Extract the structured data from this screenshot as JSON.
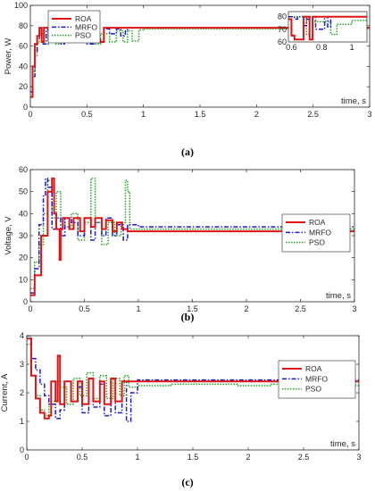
{
  "colors": {
    "ROA": "#e01414",
    "MRFO": "#1a1ad0",
    "PSO": "#22a522"
  },
  "panels": [
    {
      "label": "(a)"
    },
    {
      "label": "(b)"
    },
    {
      "label": "(c)"
    }
  ],
  "chart_data": [
    {
      "type": "line",
      "panel": "(a)",
      "xlabel": "time, s",
      "ylabel": "Power, W",
      "xlim": [
        0,
        3
      ],
      "ylim": [
        0,
        100
      ],
      "xticks": [
        0,
        0.5,
        1,
        1.5,
        2,
        2.5,
        3
      ],
      "yticks": [
        0,
        20,
        40,
        60,
        80,
        100
      ],
      "legend": [
        "ROA",
        "MRFO",
        "PSO"
      ],
      "legend_position": "top-left",
      "series": [
        {
          "name": "ROA",
          "style": "solid",
          "x": [
            0,
            0.02,
            0.04,
            0.06,
            0.08,
            0.1,
            0.12,
            0.16,
            0.2,
            0.24,
            0.28,
            0.32,
            0.36,
            0.4,
            0.44,
            0.5,
            0.56,
            0.6,
            0.62,
            0.65,
            0.72,
            0.8,
            0.86,
            0.9,
            1.0,
            3.0
          ],
          "values": [
            10,
            40,
            62,
            70,
            78,
            64,
            78,
            66,
            78,
            64,
            78,
            64,
            78,
            66,
            78,
            64,
            78,
            66,
            64,
            78,
            78,
            78,
            78,
            78,
            78,
            78
          ]
        },
        {
          "name": "MRFO",
          "style": "dashdot",
          "x": [
            0,
            0.02,
            0.04,
            0.06,
            0.08,
            0.1,
            0.14,
            0.18,
            0.22,
            0.26,
            0.3,
            0.36,
            0.42,
            0.5,
            0.56,
            0.6,
            0.65,
            0.7,
            0.76,
            0.8,
            0.84,
            0.86,
            0.9,
            1.0,
            3.0
          ],
          "values": [
            15,
            30,
            55,
            68,
            74,
            62,
            76,
            64,
            72,
            62,
            76,
            64,
            74,
            62,
            76,
            64,
            77,
            72,
            77,
            70,
            76,
            78,
            78,
            78,
            78
          ]
        },
        {
          "name": "PSO",
          "style": "dotted",
          "x": [
            0,
            0.02,
            0.04,
            0.06,
            0.08,
            0.12,
            0.16,
            0.22,
            0.3,
            0.38,
            0.46,
            0.54,
            0.62,
            0.7,
            0.76,
            0.82,
            0.86,
            0.9,
            0.96,
            1.0,
            1.5,
            2.0,
            2.5,
            3.0
          ],
          "values": [
            20,
            35,
            50,
            63,
            72,
            62,
            74,
            62,
            72,
            64,
            74,
            62,
            72,
            64,
            75,
            64,
            75,
            65,
            76,
            77,
            77,
            77,
            77,
            77
          ]
        }
      ],
      "inset": {
        "xlim": [
          0.58,
          1.1
        ],
        "ylim": [
          60,
          84
        ],
        "xticks": [
          0.6,
          0.8,
          1
        ],
        "yticks": [
          60,
          70,
          80
        ],
        "series": [
          {
            "name": "ROA",
            "style": "solid",
            "x": [
              0.58,
              0.6,
              0.62,
              0.66,
              0.68,
              0.72,
              0.74,
              0.8,
              1.1
            ],
            "values": [
              78,
              65,
              62,
              62,
              80,
              62,
              80,
              80,
              80
            ]
          },
          {
            "name": "MRFO",
            "style": "dashdot",
            "x": [
              0.58,
              0.6,
              0.62,
              0.64,
              0.68,
              0.7,
              0.72,
              0.76,
              0.8,
              0.82,
              0.84,
              0.86,
              0.9,
              1.1
            ],
            "values": [
              80,
              80,
              78,
              80,
              73,
              78,
              80,
              70,
              70,
              80,
              72,
              80,
              80,
              80
            ]
          },
          {
            "name": "PSO",
            "style": "dotted",
            "x": [
              0.58,
              0.62,
              0.66,
              0.7,
              0.72,
              0.76,
              0.8,
              0.86,
              0.9,
              0.96,
              1.0,
              1.1
            ],
            "values": [
              80,
              80,
              80,
              66,
              76,
              76,
              76,
              66,
              74,
              74,
              77,
              77
            ]
          }
        ]
      }
    },
    {
      "type": "line",
      "panel": "(b)",
      "xlabel": "time, s",
      "ylabel": "Voltage, V",
      "xlim": [
        0,
        3
      ],
      "ylim": [
        0,
        60
      ],
      "xticks": [
        0,
        0.5,
        1,
        1.5,
        2,
        2.5,
        3
      ],
      "yticks": [
        0,
        10,
        20,
        30,
        40,
        50,
        60
      ],
      "legend": [
        "ROA",
        "MRFO",
        "PSO"
      ],
      "legend_position": "top-right",
      "series": [
        {
          "name": "ROA",
          "style": "solid",
          "x": [
            0,
            0.04,
            0.1,
            0.16,
            0.2,
            0.22,
            0.24,
            0.27,
            0.28,
            0.3,
            0.36,
            0.4,
            0.46,
            0.5,
            0.56,
            0.6,
            0.66,
            0.7,
            0.76,
            0.8,
            0.85,
            0.9,
            3.0
          ],
          "values": [
            3,
            12,
            30,
            50,
            56,
            40,
            33,
            19,
            33,
            38,
            33,
            38,
            32,
            38,
            34,
            38,
            33,
            37,
            32,
            36,
            33,
            32,
            32
          ]
        },
        {
          "name": "MRFO",
          "style": "dashdot",
          "x": [
            0,
            0.04,
            0.08,
            0.12,
            0.14,
            0.16,
            0.2,
            0.24,
            0.28,
            0.32,
            0.38,
            0.44,
            0.5,
            0.56,
            0.6,
            0.66,
            0.7,
            0.76,
            0.8,
            0.86,
            0.9,
            1.0,
            3.0
          ],
          "values": [
            4,
            15,
            35,
            48,
            56,
            52,
            33,
            38,
            30,
            38,
            36,
            30,
            38,
            28,
            36,
            30,
            38,
            30,
            35,
            28,
            35,
            34,
            34
          ]
        },
        {
          "name": "PSO",
          "style": "dotted",
          "x": [
            0,
            0.04,
            0.08,
            0.12,
            0.16,
            0.2,
            0.24,
            0.28,
            0.32,
            0.38,
            0.44,
            0.5,
            0.56,
            0.6,
            0.66,
            0.72,
            0.78,
            0.84,
            0.88,
            0.9,
            0.92,
            1.0,
            3.0
          ],
          "values": [
            6,
            18,
            26,
            40,
            55,
            38,
            50,
            38,
            34,
            40,
            28,
            36,
            56,
            36,
            26,
            36,
            30,
            36,
            55,
            50,
            33,
            33,
            33
          ]
        }
      ]
    },
    {
      "type": "line",
      "panel": "(c)",
      "xlabel": "time, s",
      "ylabel": "Current, A",
      "xlim": [
        0,
        3
      ],
      "ylim": [
        0,
        4
      ],
      "xticks": [
        0,
        0.5,
        1,
        1.5,
        2,
        2.5,
        3
      ],
      "yticks": [
        0,
        1,
        2,
        3,
        4
      ],
      "legend": [
        "ROA",
        "MRFO",
        "PSO"
      ],
      "legend_position": "top-right",
      "series": [
        {
          "name": "ROA",
          "style": "solid",
          "x": [
            0,
            0.04,
            0.08,
            0.12,
            0.16,
            0.2,
            0.22,
            0.26,
            0.28,
            0.3,
            0.34,
            0.4,
            0.46,
            0.5,
            0.56,
            0.6,
            0.66,
            0.7,
            0.76,
            0.8,
            0.86,
            0.9,
            3.0
          ],
          "values": [
            3.9,
            2.6,
            1.8,
            1.3,
            1.1,
            1.2,
            2.4,
            1.7,
            3.3,
            1.6,
            2.4,
            1.7,
            2.4,
            1.6,
            2.5,
            1.7,
            2.4,
            1.6,
            2.5,
            1.7,
            2.4,
            2.4,
            2.4
          ]
        },
        {
          "name": "MRFO",
          "style": "dashdot",
          "x": [
            0,
            0.04,
            0.08,
            0.12,
            0.16,
            0.2,
            0.26,
            0.3,
            0.34,
            0.4,
            0.46,
            0.5,
            0.56,
            0.6,
            0.66,
            0.7,
            0.76,
            0.8,
            0.86,
            0.9,
            0.94,
            1.0,
            3.0
          ],
          "values": [
            4.0,
            3.2,
            2.8,
            2.3,
            1.9,
            1.6,
            1.1,
            1.4,
            2.4,
            1.7,
            2.2,
            1.3,
            2.5,
            1.5,
            2.3,
            1.2,
            2.5,
            1.3,
            2.4,
            1.0,
            2.0,
            2.45,
            2.45
          ]
        },
        {
          "name": "PSO",
          "style": "dotted",
          "x": [
            0,
            0.04,
            0.08,
            0.12,
            0.16,
            0.2,
            0.26,
            0.3,
            0.36,
            0.42,
            0.48,
            0.54,
            0.6,
            0.66,
            0.72,
            0.78,
            0.84,
            0.88,
            0.92,
            1.0,
            1.3,
            1.6,
            1.9,
            2.2,
            2.5,
            3.0
          ],
          "values": [
            3.7,
            2.6,
            1.9,
            1.4,
            1.2,
            1.7,
            2.4,
            2.2,
            1.6,
            2.5,
            1.9,
            2.7,
            1.8,
            2.6,
            1.8,
            2.5,
            1.9,
            2.6,
            2.2,
            2.25,
            2.3,
            2.3,
            2.25,
            2.3,
            2.25,
            2.25
          ]
        }
      ]
    }
  ]
}
